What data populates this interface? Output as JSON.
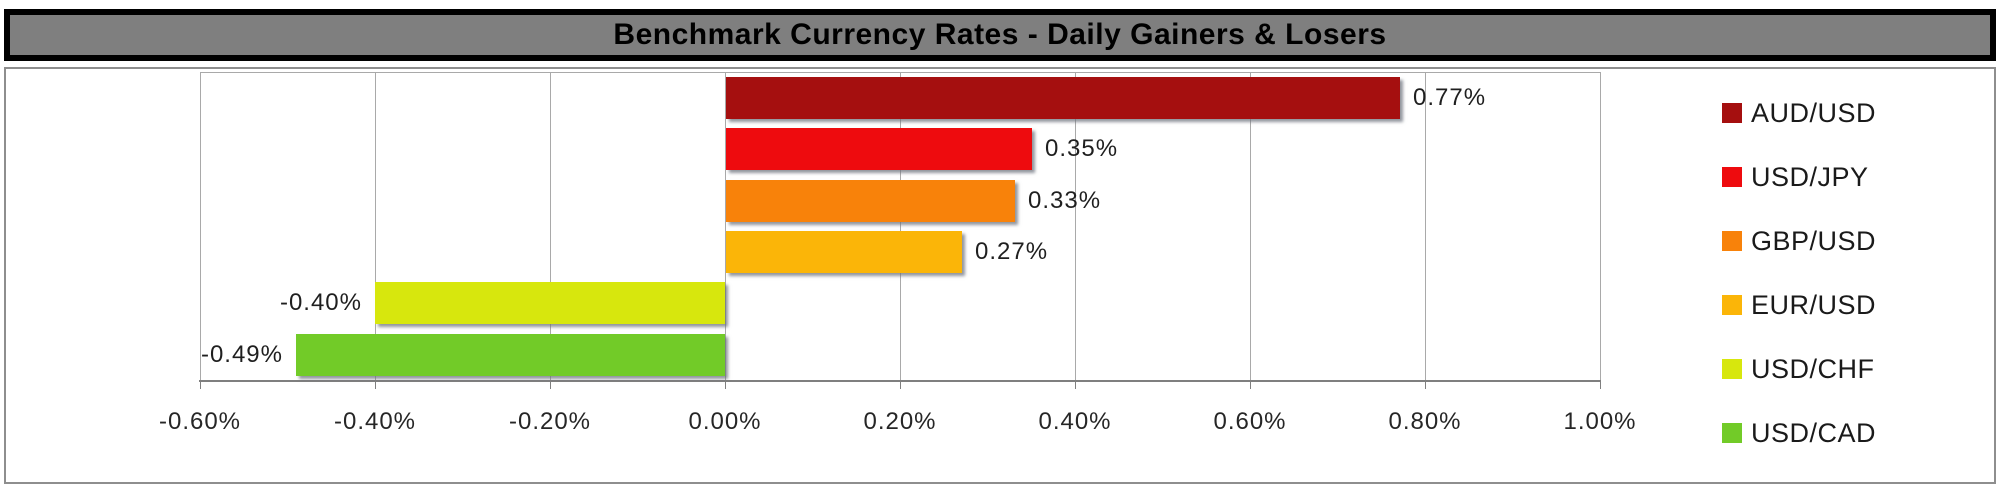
{
  "title": "Benchmark Currency Rates - Daily Gainers & Losers",
  "chart_data": {
    "type": "bar",
    "orientation": "horizontal",
    "title": "Benchmark Currency Rates - Daily Gainers & Losers",
    "series": [
      {
        "name": "AUD/USD",
        "value": 0.77,
        "label": "0.77%",
        "color": "#a50f0f"
      },
      {
        "name": "USD/JPY",
        "value": 0.35,
        "label": "0.35%",
        "color": "#ee0b0e"
      },
      {
        "name": "GBP/USD",
        "value": 0.33,
        "label": "0.33%",
        "color": "#f8820a"
      },
      {
        "name": "EUR/USD",
        "value": 0.27,
        "label": "0.27%",
        "color": "#fbb508"
      },
      {
        "name": "USD/CHF",
        "value": -0.4,
        "label": "-0.40%",
        "color": "#d7e70d"
      },
      {
        "name": "USD/CAD",
        "value": -0.49,
        "label": "-0.49%",
        "color": "#72cb28"
      }
    ],
    "x_axis": {
      "min": -0.6,
      "max": 1.0,
      "step": 0.2,
      "unit": "%",
      "tick_labels": [
        "-0.60%",
        "-0.40%",
        "-0.20%",
        "0.00%",
        "0.20%",
        "0.40%",
        "0.60%",
        "0.80%",
        "1.00%"
      ]
    },
    "grid": true,
    "legend_position": "right",
    "legend": [
      "AUD/USD",
      "USD/JPY",
      "GBP/USD",
      "EUR/USD",
      "USD/CHF",
      "USD/CAD"
    ]
  },
  "style_colors": {
    "title_background": "#7f7f7f",
    "title_border": "#000000",
    "title_text": "#000000",
    "chart_border": "#8e8e8e",
    "gridline": "#a9a9a9",
    "axis_line": "#7f7f7f",
    "label_text": "#1f1f1f"
  }
}
